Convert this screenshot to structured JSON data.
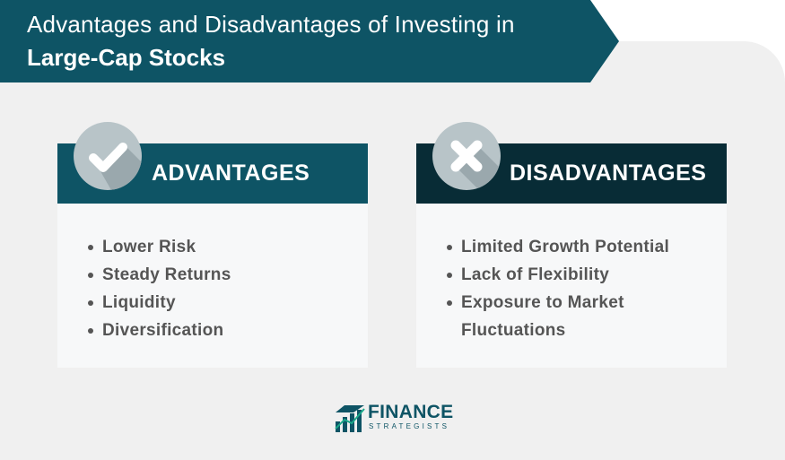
{
  "header": {
    "line1": "Advantages and Disadvantages of Investing in",
    "line2": "Large-Cap Stocks"
  },
  "advantages": {
    "title": "ADVANTAGES",
    "icon": "checkmark-icon",
    "items": [
      "Lower Risk",
      "Steady Returns",
      "Liquidity",
      "Diversification"
    ]
  },
  "disadvantages": {
    "title": "DISADVANTAGES",
    "icon": "x-mark-icon",
    "items": [
      "Limited Growth Potential",
      "Lack of Flexibility",
      "Exposure to Market Fluctuations"
    ]
  },
  "logo": {
    "name": "FINANCE",
    "subname": "STRATEGISTS"
  },
  "colors": {
    "primary_teal": "#0e5465",
    "dark_teal": "#082c36",
    "panel_bg": "#f0f0f0",
    "card_bg": "#f7f8f9",
    "text_gray": "#555555"
  }
}
